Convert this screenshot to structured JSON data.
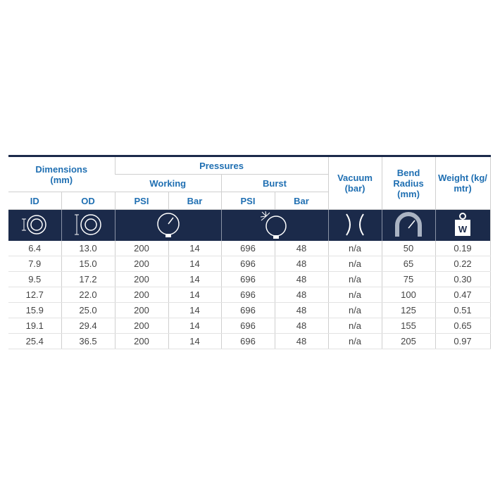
{
  "header": {
    "dimensions": "Dimensions (mm)",
    "pressures": "Pressures",
    "working": "Working",
    "burst": "Burst",
    "vacuum": "Vacuum (bar)",
    "bend_radius": "Bend Radius (mm)",
    "weight": "Weight (kg/ mtr)",
    "columns": [
      "ID",
      "OD",
      "PSI",
      "Bar",
      "PSI",
      "Bar"
    ]
  },
  "table": {
    "rows": [
      [
        "6.4",
        "13.0",
        "200",
        "14",
        "696",
        "48",
        "n/a",
        "50",
        "0.19"
      ],
      [
        "7.9",
        "15.0",
        "200",
        "14",
        "696",
        "48",
        "n/a",
        "65",
        "0.22"
      ],
      [
        "9.5",
        "17.2",
        "200",
        "14",
        "696",
        "48",
        "n/a",
        "75",
        "0.30"
      ],
      [
        "12.7",
        "22.0",
        "200",
        "14",
        "696",
        "48",
        "n/a",
        "100",
        "0.47"
      ],
      [
        "15.9",
        "25.0",
        "200",
        "14",
        "696",
        "48",
        "n/a",
        "125",
        "0.51"
      ],
      [
        "19.1",
        "29.4",
        "200",
        "14",
        "696",
        "48",
        "n/a",
        "155",
        "0.65"
      ],
      [
        "25.4",
        "36.5",
        "200",
        "14",
        "696",
        "48",
        "n/a",
        "205",
        "0.97"
      ]
    ]
  }
}
